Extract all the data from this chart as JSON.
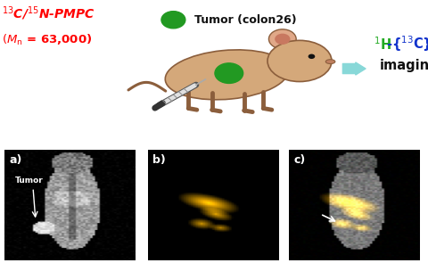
{
  "bg_color": "#ffffff",
  "red_color": "#ff0000",
  "green_color": "#22aa22",
  "blue_color": "#1133cc",
  "black_color": "#111111",
  "panel_bg": "#000000",
  "mouse_body_color": "#d4a87a",
  "mouse_edge_color": "#8b5e3c",
  "tumor_green": "#229922",
  "arrow_color": "#88d8d8",
  "label_a": "a)",
  "label_b": "b)",
  "label_c": "c)",
  "tumor_text": "Tumor",
  "tumor_legend": "Tumor (colon26)",
  "imaging_line1": "-{",
  "imaging_line2": "C} MR",
  "imaging_line3": "imaging",
  "left_line1": "$^{13}$C/$^{15}$N-PMPC",
  "left_line2": "$(M_\\mathrm{n}$ = 63,000)"
}
